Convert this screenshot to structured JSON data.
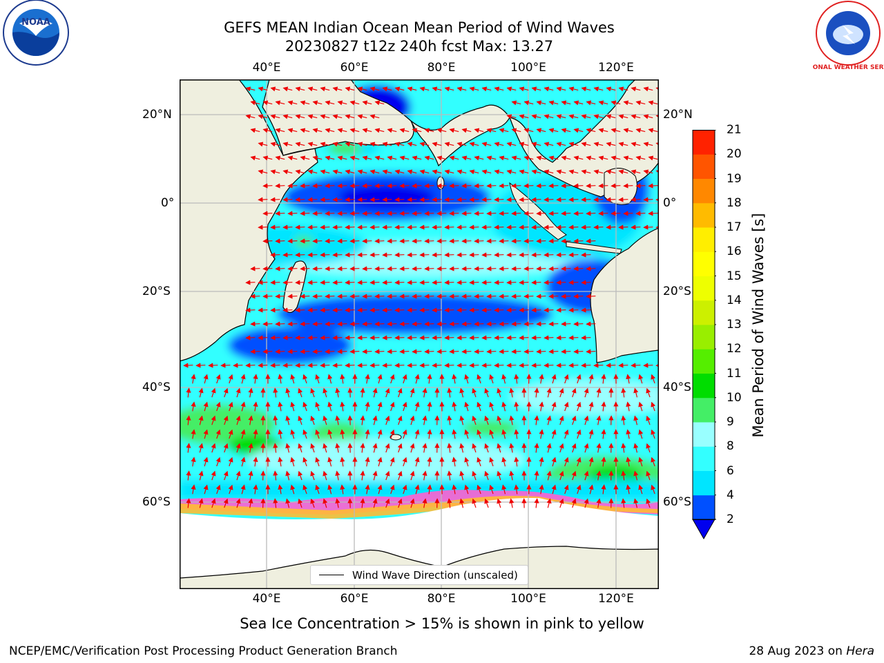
{
  "title_line1": "GEFS MEAN Indian Ocean Mean Period of Wind Waves",
  "title_line2": "20230827 t12z 240h fcst   Max: 13.27",
  "lon_ticks": [
    "40°E",
    "60°E",
    "80°E",
    "100°E",
    "120°E"
  ],
  "lat_ticks": [
    "20°N",
    "0°",
    "20°S",
    "40°S",
    "60°S"
  ],
  "colorbar": {
    "label": "Mean Period of Wind Waves [s]",
    "ticks": [
      "2",
      "4",
      "6",
      "8",
      "9",
      "10",
      "11",
      "12",
      "13",
      "14",
      "15",
      "16",
      "17",
      "18",
      "19",
      "20",
      "21"
    ],
    "colors": [
      "#0050ff",
      "#00e5ff",
      "#33ffff",
      "#99ffff",
      "#44ee66",
      "#00dd00",
      "#55ee00",
      "#99ee00",
      "#ccf000",
      "#eeff00",
      "#ffff00",
      "#ffee00",
      "#ffbb00",
      "#ff8800",
      "#ff5500",
      "#ff2200"
    ],
    "under_color": "#0000ee"
  },
  "legend_label": "Wind Wave Direction (unscaled)",
  "footnote": "Sea Ice Concentration > 15% is shown in pink to yellow",
  "credit": "NCEP/EMC/Verification Post Processing Product Generation Branch",
  "date_prefix": "28 Aug 2023 on ",
  "date_host": "Hera",
  "logo_left_text": "NOAA",
  "logo_right_text": "NATIONAL WEATHER SERVICE",
  "colors": {
    "land": "#efefdf",
    "ice": "#ffffff",
    "arrow": "#ee0000",
    "grid": "#bbbbbb"
  }
}
